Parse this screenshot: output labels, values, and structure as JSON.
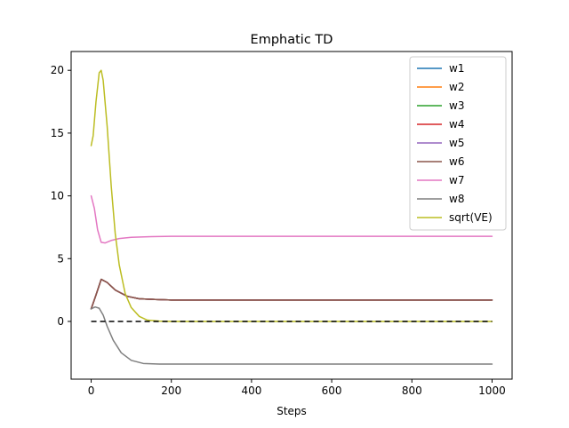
{
  "chart_data": {
    "type": "line",
    "title": "Emphatic TD",
    "xlabel": "Steps",
    "ylabel": "",
    "xlim": [
      -50,
      1050
    ],
    "ylim": [
      -4.6,
      21.5
    ],
    "xticks": [
      0,
      200,
      400,
      600,
      800,
      1000
    ],
    "yticks": [
      0,
      5,
      10,
      15,
      20
    ],
    "grid": false,
    "legend_position": "top-right",
    "series": [
      {
        "name": "w1",
        "color": "#1f77b4",
        "x": [
          0,
          12,
          25,
          40,
          60,
          90,
          120,
          160,
          200,
          400,
          1000
        ],
        "y": [
          1.0,
          2.1,
          3.35,
          3.1,
          2.5,
          2.0,
          1.8,
          1.75,
          1.7,
          1.7,
          1.7
        ]
      },
      {
        "name": "w2",
        "color": "#ff7f0e",
        "x": [
          0,
          12,
          25,
          40,
          60,
          90,
          120,
          160,
          200,
          400,
          1000
        ],
        "y": [
          1.0,
          2.1,
          3.35,
          3.1,
          2.5,
          2.0,
          1.8,
          1.75,
          1.7,
          1.7,
          1.7
        ]
      },
      {
        "name": "w3",
        "color": "#2ca02c",
        "x": [
          0,
          12,
          25,
          40,
          60,
          90,
          120,
          160,
          200,
          400,
          1000
        ],
        "y": [
          1.0,
          2.1,
          3.35,
          3.1,
          2.5,
          2.0,
          1.8,
          1.75,
          1.7,
          1.7,
          1.7
        ]
      },
      {
        "name": "w4",
        "color": "#d62728",
        "x": [
          0,
          12,
          25,
          40,
          60,
          90,
          120,
          160,
          200,
          400,
          1000
        ],
        "y": [
          1.0,
          2.1,
          3.35,
          3.1,
          2.5,
          2.0,
          1.8,
          1.75,
          1.7,
          1.7,
          1.7
        ]
      },
      {
        "name": "w5",
        "color": "#9467bd",
        "x": [
          0,
          12,
          25,
          40,
          60,
          90,
          120,
          160,
          200,
          400,
          1000
        ],
        "y": [
          1.0,
          2.1,
          3.35,
          3.1,
          2.5,
          2.0,
          1.8,
          1.75,
          1.7,
          1.7,
          1.7
        ]
      },
      {
        "name": "w6",
        "color": "#8c564b",
        "x": [
          0,
          12,
          25,
          40,
          60,
          90,
          120,
          160,
          200,
          400,
          1000
        ],
        "y": [
          1.0,
          2.1,
          3.35,
          3.1,
          2.5,
          2.0,
          1.8,
          1.75,
          1.7,
          1.7,
          1.7
        ]
      },
      {
        "name": "w7",
        "color": "#e377c2",
        "x": [
          0,
          8,
          16,
          25,
          35,
          50,
          70,
          100,
          150,
          200,
          400,
          1000
        ],
        "y": [
          10.0,
          9.0,
          7.3,
          6.3,
          6.25,
          6.45,
          6.6,
          6.7,
          6.75,
          6.78,
          6.78,
          6.78
        ]
      },
      {
        "name": "w8",
        "color": "#7f7f7f",
        "x": [
          0,
          10,
          20,
          30,
          40,
          55,
          75,
          100,
          130,
          170,
          250,
          1000
        ],
        "y": [
          1.0,
          1.15,
          1.05,
          0.5,
          -0.4,
          -1.5,
          -2.5,
          -3.1,
          -3.35,
          -3.4,
          -3.4,
          -3.4
        ]
      },
      {
        "name": "sqrt(VE)",
        "color": "#bcbd22",
        "x": [
          0,
          5,
          12,
          20,
          25,
          30,
          40,
          50,
          60,
          70,
          85,
          100,
          120,
          140,
          170,
          200,
          300,
          1000
        ],
        "y": [
          14.0,
          14.8,
          17.5,
          19.8,
          20.0,
          19.2,
          15.5,
          10.8,
          7.0,
          4.5,
          2.2,
          1.1,
          0.4,
          0.1,
          0.02,
          0.0,
          0.0,
          0.0
        ]
      },
      {
        "name": "",
        "color": "#000000",
        "dashed": true,
        "x": [
          0,
          1000
        ],
        "y": [
          0,
          0
        ]
      }
    ]
  }
}
